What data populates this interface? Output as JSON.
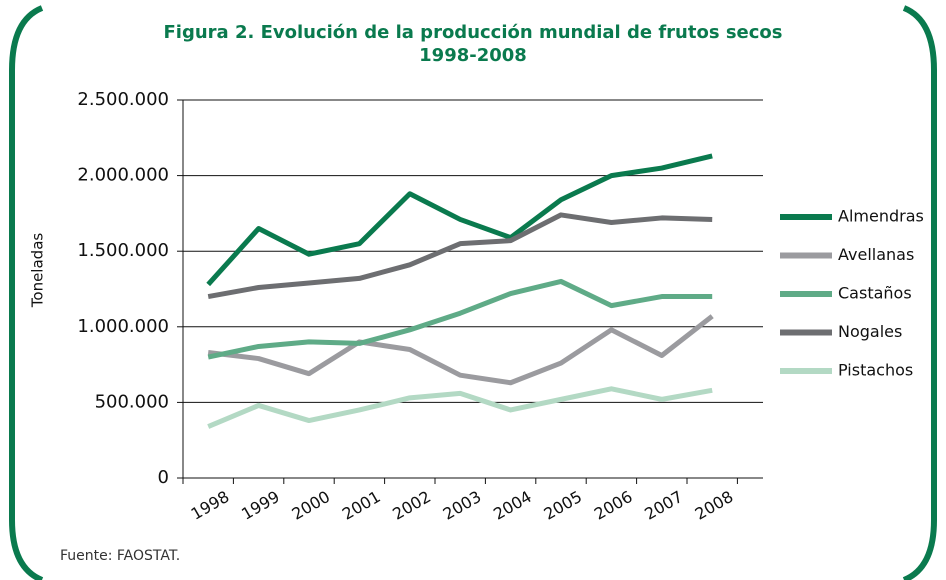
{
  "chart_data": {
    "type": "line",
    "title": "Figura 2. Evolución de la producción mundial de frutos secos 1998-2008",
    "y_label": "Toneladas",
    "source": "Fuente: FAOSTAT.",
    "categories": [
      "1998",
      "1999",
      "2000",
      "2001",
      "2002",
      "2003",
      "2004",
      "2005",
      "2006",
      "2007",
      "2008"
    ],
    "series": [
      {
        "name": "Almendras",
        "color": "#0a7a4e",
        "values": [
          1280000,
          1650000,
          1480000,
          1550000,
          1880000,
          1710000,
          1590000,
          1840000,
          2000000,
          2050000,
          2130000
        ]
      },
      {
        "name": "Avellanas",
        "color": "#9b9b9f",
        "values": [
          830000,
          790000,
          690000,
          900000,
          850000,
          680000,
          630000,
          760000,
          980000,
          810000,
          1070000
        ]
      },
      {
        "name": "Castaños",
        "color": "#5fab87",
        "values": [
          800000,
          870000,
          900000,
          890000,
          980000,
          1090000,
          1220000,
          1300000,
          1140000,
          1200000,
          1200000
        ]
      },
      {
        "name": "Nogales",
        "color": "#6d6e71",
        "values": [
          1200000,
          1260000,
          1290000,
          1320000,
          1410000,
          1550000,
          1570000,
          1740000,
          1690000,
          1720000,
          1710000
        ]
      },
      {
        "name": "Pistachos",
        "color": "#b3d9c4",
        "values": [
          340000,
          480000,
          380000,
          450000,
          530000,
          560000,
          450000,
          520000,
          590000,
          520000,
          580000
        ]
      }
    ],
    "ylim": [
      0,
      2500000
    ],
    "yticks": [
      0,
      {
        "value": 500000,
        "label": "500.000"
      },
      {
        "value": 1000000,
        "label": "1.000.000"
      },
      {
        "value": 1500000,
        "label": "1.500.000"
      },
      {
        "value": 2000000,
        "label": "2.000.000"
      },
      {
        "value": 2500000,
        "label": "2.500.000"
      }
    ],
    "grid": true,
    "legend": "right"
  }
}
